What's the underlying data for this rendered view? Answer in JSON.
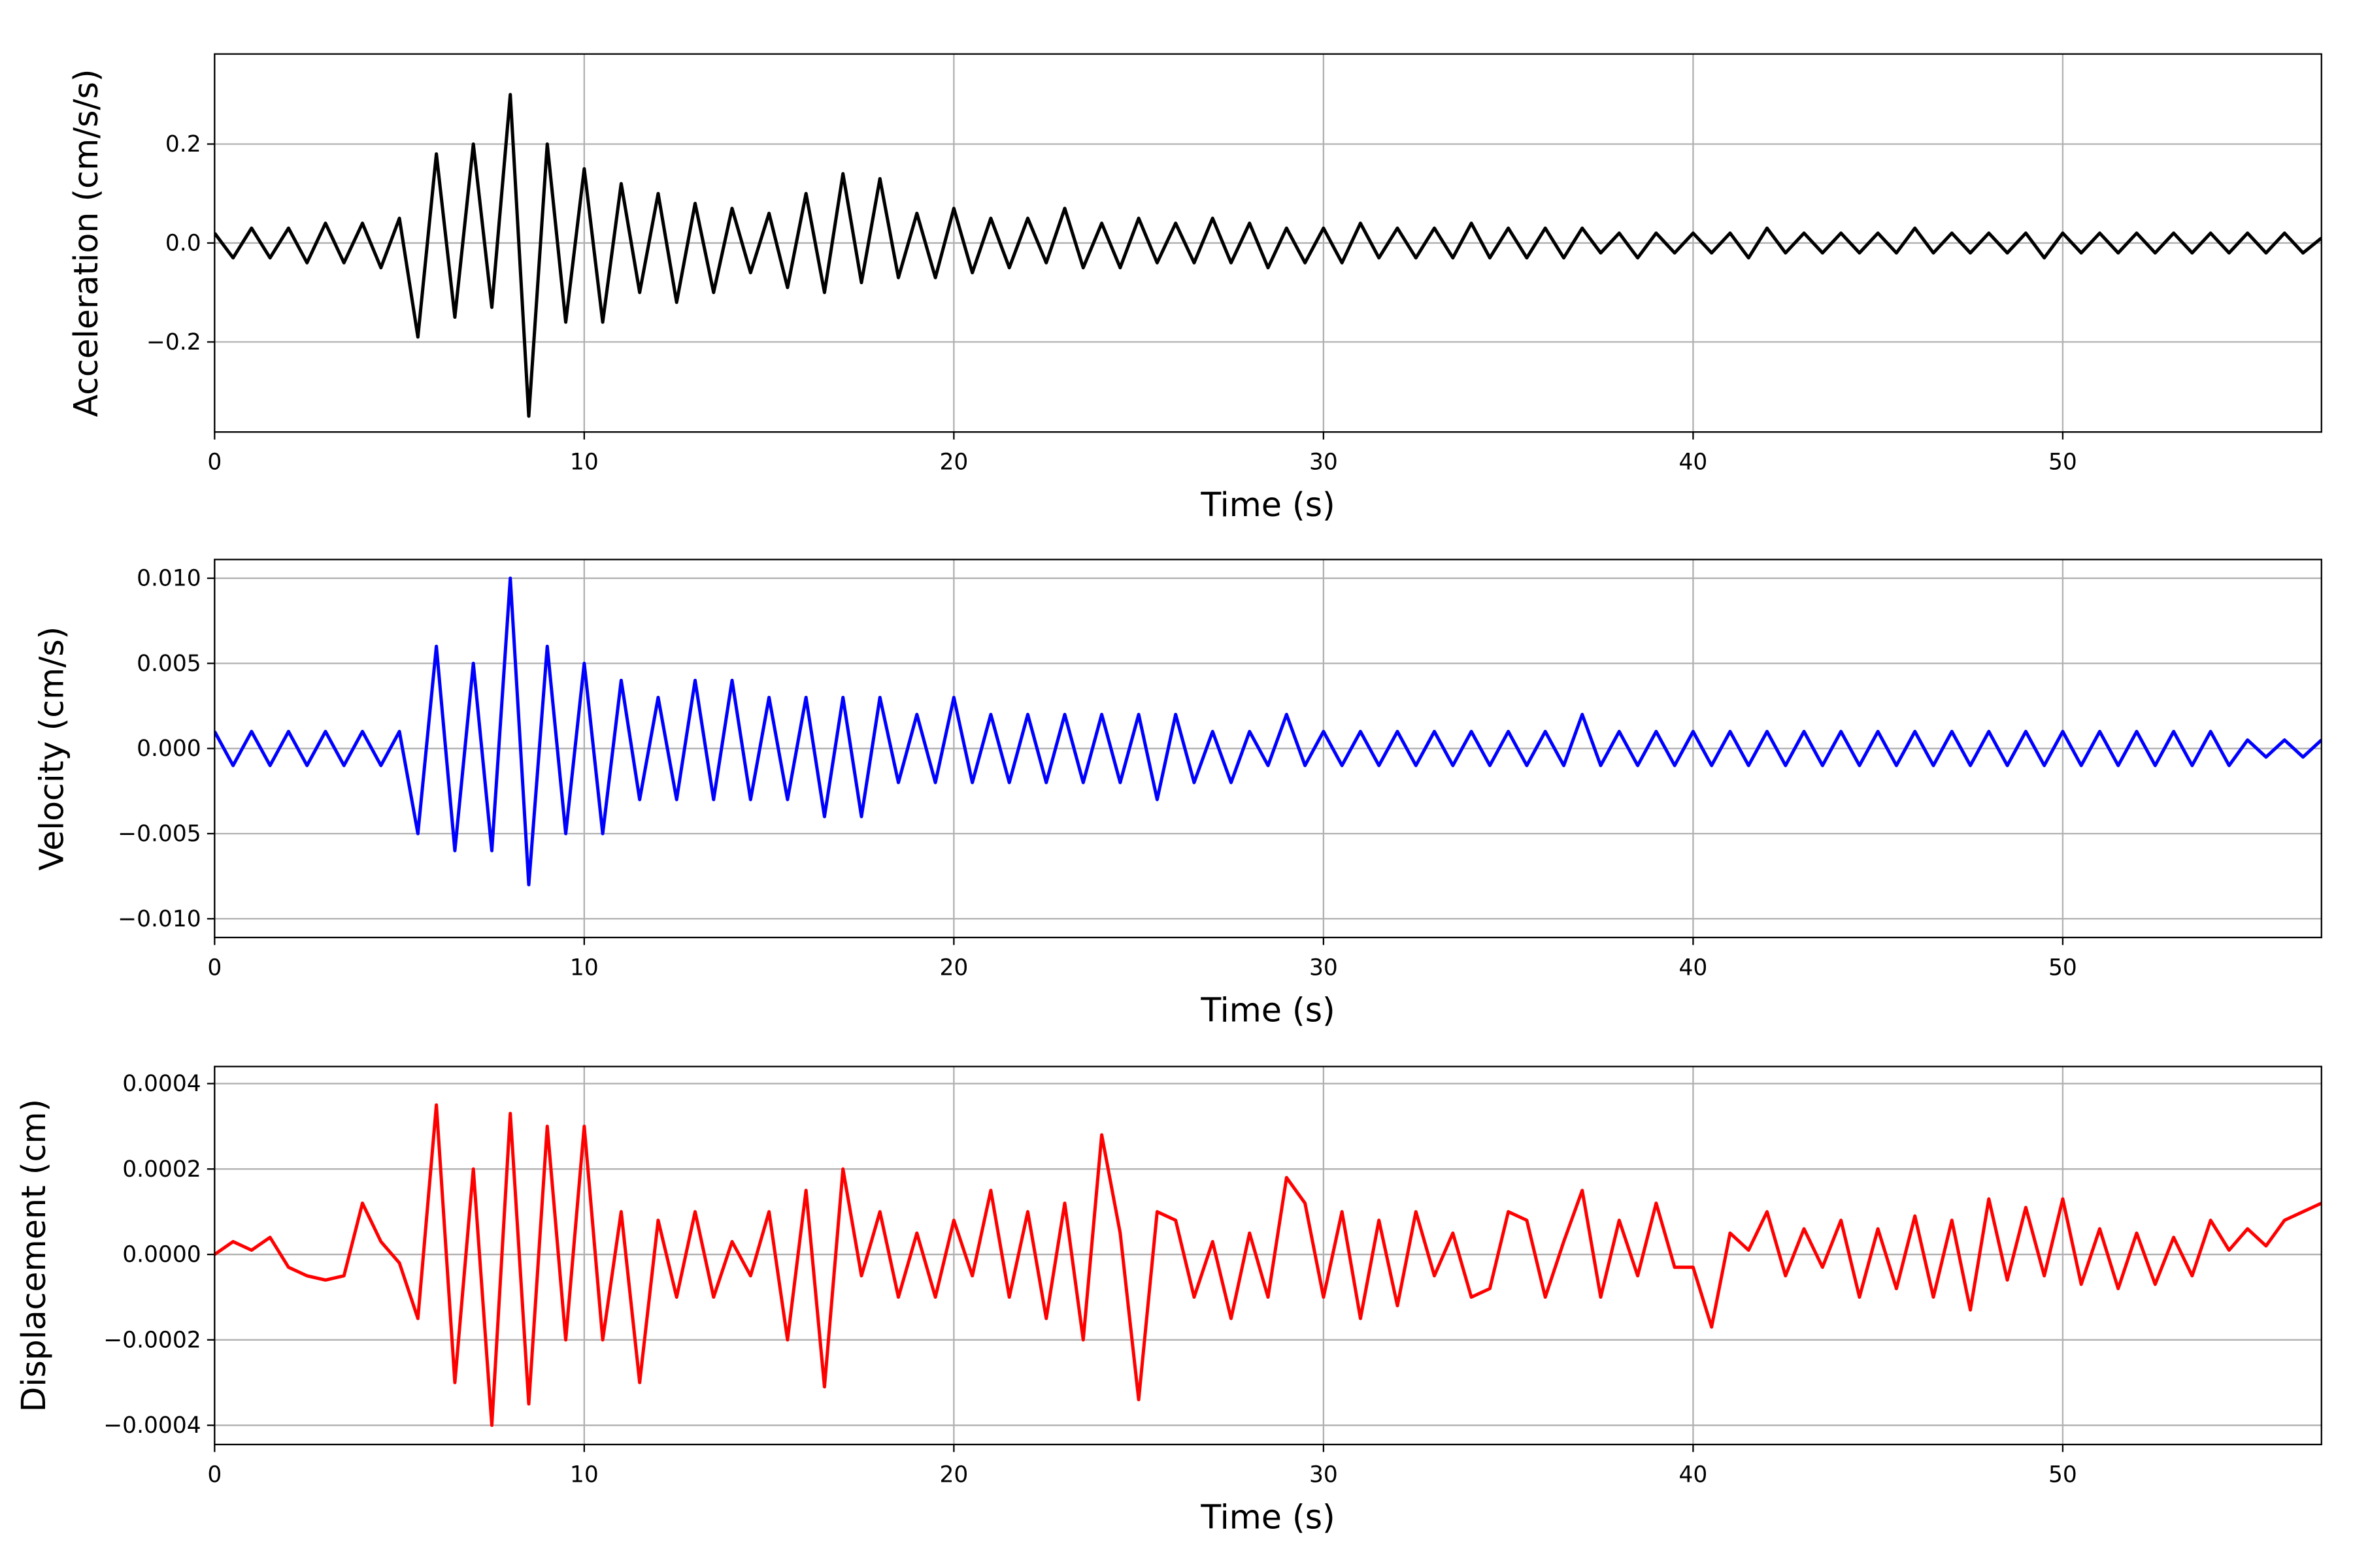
{
  "chart_data": [
    {
      "type": "line",
      "xlabel": "Time (s)",
      "ylabel": "Acceleration (cm/s/s)",
      "color": "#000000",
      "grid": true,
      "xlim": [
        0,
        57
      ],
      "xticks": [
        0,
        10,
        20,
        30,
        40,
        50
      ],
      "ylim": [
        -0.382,
        0.382
      ],
      "yticks": [
        {
          "value": -0.2,
          "label": "−0.2"
        },
        {
          "value": 0,
          "label": "0.0"
        },
        0.2
      ],
      "x": [
        0,
        0.5,
        1,
        1.5,
        2,
        2.5,
        3,
        3.5,
        4,
        4.5,
        5,
        5.5,
        6,
        6.5,
        7,
        7.5,
        8,
        8.5,
        9,
        9.5,
        10,
        10.5,
        11,
        11.5,
        12,
        12.5,
        13,
        13.5,
        14,
        14.5,
        15,
        15.5,
        16,
        16.5,
        17,
        17.5,
        18,
        18.5,
        19,
        19.5,
        20,
        20.5,
        21,
        21.5,
        22,
        22.5,
        23,
        23.5,
        24,
        24.5,
        25,
        25.5,
        26,
        26.5,
        27,
        27.5,
        28,
        28.5,
        29,
        29.5,
        30,
        30.5,
        31,
        31.5,
        32,
        32.5,
        33,
        33.5,
        34,
        34.5,
        35,
        35.5,
        36,
        36.5,
        37,
        37.5,
        38,
        38.5,
        39,
        39.5,
        40,
        40.5,
        41,
        41.5,
        42,
        42.5,
        43,
        43.5,
        44,
        44.5,
        45,
        45.5,
        46,
        46.5,
        47,
        47.5,
        48,
        48.5,
        49,
        49.5,
        50,
        50.5,
        51,
        51.5,
        52,
        52.5,
        53,
        53.5,
        54,
        54.5,
        55,
        55.5,
        56,
        56.5,
        57
      ],
      "values": [
        0.02,
        -0.03,
        0.03,
        -0.03,
        0.03,
        -0.04,
        0.04,
        -0.04,
        0.04,
        -0.05,
        0.05,
        -0.19,
        0.18,
        -0.15,
        0.2,
        -0.13,
        0.3,
        -0.35,
        0.2,
        -0.16,
        0.15,
        -0.16,
        0.12,
        -0.1,
        0.1,
        -0.12,
        0.08,
        -0.1,
        0.07,
        -0.06,
        0.06,
        -0.09,
        0.1,
        -0.1,
        0.14,
        -0.08,
        0.13,
        -0.07,
        0.06,
        -0.07,
        0.07,
        -0.06,
        0.05,
        -0.05,
        0.05,
        -0.04,
        0.07,
        -0.05,
        0.04,
        -0.05,
        0.05,
        -0.04,
        0.04,
        -0.04,
        0.05,
        -0.04,
        0.04,
        -0.05,
        0.03,
        -0.04,
        0.03,
        -0.04,
        0.04,
        -0.03,
        0.03,
        -0.03,
        0.03,
        -0.03,
        0.04,
        -0.03,
        0.03,
        -0.03,
        0.03,
        -0.03,
        0.03,
        -0.02,
        0.02,
        -0.03,
        0.02,
        -0.02,
        0.02,
        -0.02,
        0.02,
        -0.03,
        0.03,
        -0.02,
        0.02,
        -0.02,
        0.02,
        -0.02,
        0.02,
        -0.02,
        0.03,
        -0.02,
        0.02,
        -0.02,
        0.02,
        -0.02,
        0.02,
        -0.03,
        0.02,
        -0.02,
        0.02,
        -0.02,
        0.02,
        -0.02,
        0.02,
        -0.02,
        0.02,
        -0.02,
        0.02,
        -0.02,
        0.02,
        -0.02,
        0.01
      ]
    },
    {
      "type": "line",
      "xlabel": "Time (s)",
      "ylabel": "Velocity (cm/s)",
      "color": "#0000ff",
      "grid": true,
      "xlim": [
        0,
        57
      ],
      "xticks": [
        0,
        10,
        20,
        30,
        40,
        50
      ],
      "ylim": [
        -0.0111,
        0.0111
      ],
      "yticks": [
        {
          "value": -0.01,
          "label": "−0.010"
        },
        {
          "value": -0.005,
          "label": "−0.005"
        },
        {
          "value": 0,
          "label": "0.000"
        },
        0.005,
        {
          "value": 0.01,
          "label": "0.010"
        }
      ],
      "x": [
        0,
        0.5,
        1,
        1.5,
        2,
        2.5,
        3,
        3.5,
        4,
        4.5,
        5,
        5.5,
        6,
        6.5,
        7,
        7.5,
        8,
        8.5,
        9,
        9.5,
        10,
        10.5,
        11,
        11.5,
        12,
        12.5,
        13,
        13.5,
        14,
        14.5,
        15,
        15.5,
        16,
        16.5,
        17,
        17.5,
        18,
        18.5,
        19,
        19.5,
        20,
        20.5,
        21,
        21.5,
        22,
        22.5,
        23,
        23.5,
        24,
        24.5,
        25,
        25.5,
        26,
        26.5,
        27,
        27.5,
        28,
        28.5,
        29,
        29.5,
        30,
        30.5,
        31,
        31.5,
        32,
        32.5,
        33,
        33.5,
        34,
        34.5,
        35,
        35.5,
        36,
        36.5,
        37,
        37.5,
        38,
        38.5,
        39,
        39.5,
        40,
        40.5,
        41,
        41.5,
        42,
        42.5,
        43,
        43.5,
        44,
        44.5,
        45,
        45.5,
        46,
        46.5,
        47,
        47.5,
        48,
        48.5,
        49,
        49.5,
        50,
        50.5,
        51,
        51.5,
        52,
        52.5,
        53,
        53.5,
        54,
        54.5,
        55,
        55.5,
        56,
        56.5,
        57
      ],
      "values": [
        0.001,
        -0.001,
        0.001,
        -0.001,
        0.001,
        -0.001,
        0.001,
        -0.001,
        0.001,
        -0.001,
        0.001,
        -0.005,
        0.006,
        -0.006,
        0.005,
        -0.006,
        0.01,
        -0.008,
        0.006,
        -0.005,
        0.005,
        -0.005,
        0.004,
        -0.003,
        0.003,
        -0.003,
        0.004,
        -0.003,
        0.004,
        -0.003,
        0.003,
        -0.003,
        0.003,
        -0.004,
        0.003,
        -0.004,
        0.003,
        -0.002,
        0.002,
        -0.002,
        0.003,
        -0.002,
        0.002,
        -0.002,
        0.002,
        -0.002,
        0.002,
        -0.002,
        0.002,
        -0.002,
        0.002,
        -0.003,
        0.002,
        -0.002,
        0.001,
        -0.002,
        0.001,
        -0.001,
        0.002,
        -0.001,
        0.001,
        -0.001,
        0.001,
        -0.001,
        0.001,
        -0.001,
        0.001,
        -0.001,
        0.001,
        -0.001,
        0.001,
        -0.001,
        0.001,
        -0.001,
        0.002,
        -0.001,
        0.001,
        -0.001,
        0.001,
        -0.001,
        0.001,
        -0.001,
        0.001,
        -0.001,
        0.001,
        -0.001,
        0.001,
        -0.001,
        0.001,
        -0.001,
        0.001,
        -0.001,
        0.001,
        -0.001,
        0.001,
        -0.001,
        0.001,
        -0.001,
        0.001,
        -0.001,
        0.001,
        -0.001,
        0.001,
        -0.001,
        0.001,
        -0.001,
        0.001,
        -0.001,
        0.001,
        -0.001,
        0.0005,
        -0.0005,
        0.0005,
        -0.0005,
        0.0005
      ]
    },
    {
      "type": "line",
      "xlabel": "Time (s)",
      "ylabel": "Displacement (cm)",
      "color": "#ff0000",
      "grid": true,
      "xlim": [
        0,
        57
      ],
      "xticks": [
        0,
        10,
        20,
        30,
        40,
        50
      ],
      "ylim": [
        -0.000445,
        0.00044
      ],
      "yticks": [
        {
          "value": -0.0004,
          "label": "−0.0004"
        },
        {
          "value": -0.0002,
          "label": "−0.0002"
        },
        {
          "value": 0,
          "label": "0.0000"
        },
        0.0002,
        0.0004
      ],
      "x": [
        0,
        0.5,
        1,
        1.5,
        2,
        2.5,
        3,
        3.5,
        4,
        4.5,
        5,
        5.5,
        6,
        6.5,
        7,
        7.5,
        8,
        8.5,
        9,
        9.5,
        10,
        10.5,
        11,
        11.5,
        12,
        12.5,
        13,
        13.5,
        14,
        14.5,
        15,
        15.5,
        16,
        16.5,
        17,
        17.5,
        18,
        18.5,
        19,
        19.5,
        20,
        20.5,
        21,
        21.5,
        22,
        22.5,
        23,
        23.5,
        24,
        24.5,
        25,
        25.5,
        26,
        26.5,
        27,
        27.5,
        28,
        28.5,
        29,
        29.5,
        30,
        30.5,
        31,
        31.5,
        32,
        32.5,
        33,
        33.5,
        34,
        34.5,
        35,
        35.5,
        36,
        36.5,
        37,
        37.5,
        38,
        38.5,
        39,
        39.5,
        40,
        40.5,
        41,
        41.5,
        42,
        42.5,
        43,
        43.5,
        44,
        44.5,
        45,
        45.5,
        46,
        46.5,
        47,
        47.5,
        48,
        48.5,
        49,
        49.5,
        50,
        50.5,
        51,
        51.5,
        52,
        52.5,
        53,
        53.5,
        54,
        54.5,
        55,
        55.5,
        56,
        56.5,
        57
      ],
      "values": [
        0,
        3e-05,
        1e-05,
        4e-05,
        -3e-05,
        -5e-05,
        -6e-05,
        -5e-05,
        0.00012,
        3e-05,
        -2e-05,
        -0.00015,
        0.00035,
        -0.0003,
        0.0002,
        -0.0004,
        0.00033,
        -0.00035,
        0.0003,
        -0.0002,
        0.0003,
        -0.0002,
        0.0001,
        -0.0003,
        8e-05,
        -0.0001,
        0.0001,
        -0.0001,
        3e-05,
        -5e-05,
        0.0001,
        -0.0002,
        0.00015,
        -0.00031,
        0.0002,
        -5e-05,
        0.0001,
        -0.0001,
        5e-05,
        -0.0001,
        8e-05,
        -5e-05,
        0.00015,
        -0.0001,
        0.0001,
        -0.00015,
        0.00012,
        -0.0002,
        0.00028,
        5e-05,
        -0.00034,
        0.0001,
        8e-05,
        -0.0001,
        3e-05,
        -0.00015,
        5e-05,
        -0.0001,
        0.00018,
        0.00012,
        -0.0001,
        0.0001,
        -0.00015,
        8e-05,
        -0.00012,
        0.0001,
        -5e-05,
        5e-05,
        -0.0001,
        -8e-05,
        0.0001,
        8e-05,
        -0.0001,
        3e-05,
        0.00015,
        -0.0001,
        8e-05,
        -5e-05,
        0.00012,
        -3e-05,
        -3e-05,
        -0.00017,
        5e-05,
        1e-05,
        0.0001,
        -5e-05,
        6e-05,
        -3e-05,
        8e-05,
        -0.0001,
        6e-05,
        -8e-05,
        9e-05,
        -0.0001,
        8e-05,
        -0.00013,
        0.00013,
        -6e-05,
        0.00011,
        -5e-05,
        0.00013,
        -7e-05,
        6e-05,
        -8e-05,
        5e-05,
        -7e-05,
        4e-05,
        -5e-05,
        8e-05,
        1e-05,
        6e-05,
        2e-05,
        8e-05,
        0.0001,
        0.00012
      ]
    }
  ]
}
